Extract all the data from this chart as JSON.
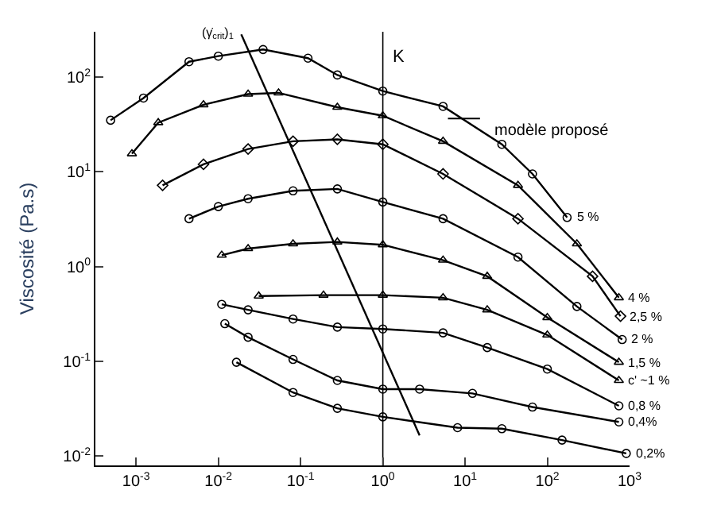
{
  "chart_data": {
    "type": "line",
    "ylabel": "Viscosité (Pa.s)",
    "log": "xy",
    "line_style": "solid",
    "xlim": [
      0.00032,
      1000
    ],
    "ylim": [
      0.008,
      300
    ],
    "xticks": [
      {
        "value": 0.001,
        "label": "10$^{-3}$"
      },
      {
        "value": 0.01,
        "label": "10$^{-2}$"
      },
      {
        "value": 0.1,
        "label": "10$^{-1}$"
      },
      {
        "value": 1,
        "label": "10$^{0}$"
      },
      {
        "value": 10,
        "label": "10$^{1}$"
      },
      {
        "value": 100,
        "label": "10$^{2}$"
      },
      {
        "value": 1000,
        "label": "10$^{3}$"
      }
    ],
    "yticks": [
      {
        "value": 0.01,
        "label": "10$^{-2}$"
      },
      {
        "value": 0.1,
        "label": "10$^{-1}$"
      },
      {
        "value": 1,
        "label": "10$^{0}$"
      },
      {
        "value": 10,
        "label": "10$^{1}$"
      },
      {
        "value": 100,
        "label": "10$^{2}$"
      }
    ],
    "series": [
      {
        "name": "5 %",
        "color": "#000000",
        "marker": "circle",
        "x": [
          0.00049,
          0.00123,
          0.0044,
          0.01,
          0.035,
          0.123,
          0.28,
          1,
          5.4,
          28,
          66,
          174
        ],
        "values": [
          35,
          60,
          145,
          166,
          195,
          158,
          105,
          71,
          49,
          19.5,
          9.5,
          3.3
        ]
      },
      {
        "name": "4 %",
        "color": "#000000",
        "marker": "triangle",
        "x": [
          0.00089,
          0.00186,
          0.0066,
          0.023,
          0.054,
          0.28,
          1,
          5.4,
          44,
          229,
          741
        ],
        "values": [
          15.5,
          33,
          51,
          66,
          68,
          48,
          39,
          21,
          7.2,
          1.74,
          0.47
        ]
      },
      {
        "name": "2,5 %",
        "color": "#000000",
        "marker": "diamond",
        "x": [
          0.0021,
          0.0066,
          0.023,
          0.081,
          0.28,
          1,
          5.4,
          44,
          355,
          776
        ],
        "values": [
          7.2,
          12,
          17.4,
          21,
          22,
          19.5,
          9.5,
          3.2,
          0.79,
          0.3
        ]
      },
      {
        "name": "2 %",
        "color": "#000000",
        "marker": "circle",
        "x": [
          0.0044,
          0.01,
          0.023,
          0.081,
          0.28,
          1,
          5.4,
          44,
          229,
          813
        ],
        "values": [
          3.2,
          4.3,
          5.2,
          6.3,
          6.6,
          4.8,
          3.2,
          1.26,
          0.38,
          0.17
        ]
      },
      {
        "name": "1,5 %",
        "color": "#000000",
        "marker": "triangle",
        "x": [
          0.011,
          0.023,
          0.081,
          0.28,
          1,
          5.4,
          18.6,
          100,
          741
        ],
        "values": [
          1.32,
          1.55,
          1.74,
          1.82,
          1.7,
          1.17,
          0.79,
          0.29,
          0.098
        ]
      },
      {
        "name": "c' ~1 %",
        "color": "#000000",
        "marker": "triangle",
        "x": [
          0.031,
          0.19,
          1,
          5.4,
          18.6,
          100,
          741
        ],
        "values": [
          0.49,
          0.5,
          0.5,
          0.47,
          0.35,
          0.19,
          0.063
        ]
      },
      {
        "name": "0,8 %",
        "color": "#000000",
        "marker": "circle",
        "x": [
          0.011,
          0.023,
          0.081,
          0.28,
          1,
          5.4,
          18.6,
          100,
          741
        ],
        "values": [
          0.4,
          0.35,
          0.28,
          0.23,
          0.22,
          0.2,
          0.14,
          0.083,
          0.034
        ]
      },
      {
        "name": "0,4%",
        "color": "#000000",
        "marker": "circle",
        "x": [
          0.012,
          0.023,
          0.081,
          0.28,
          1,
          2.8,
          12.3,
          66,
          741
        ],
        "values": [
          0.25,
          0.18,
          0.105,
          0.063,
          0.051,
          0.051,
          0.046,
          0.033,
          0.023
        ]
      },
      {
        "name": "0,2%",
        "color": "#000000",
        "marker": "circle",
        "x": [
          0.0166,
          0.081,
          0.28,
          1,
          8.1,
          28,
          151,
          912
        ],
        "values": [
          0.098,
          0.047,
          0.032,
          0.026,
          0.02,
          0.0195,
          0.0148,
          0.0107
        ]
      },
      {
        "name": "(γ̇$_{crit}$)$_{1}$",
        "type": "line",
        "color": "#000000",
        "marker": "none",
        "x": [
          0.019,
          2.8
        ],
        "values": [
          282,
          0.0166
        ]
      }
    ],
    "ref_lines": [
      {
        "axis": "x",
        "value": 1,
        "label": "K",
        "color": "#000000"
      }
    ],
    "annotations": [
      "modèle proposé"
    ]
  }
}
